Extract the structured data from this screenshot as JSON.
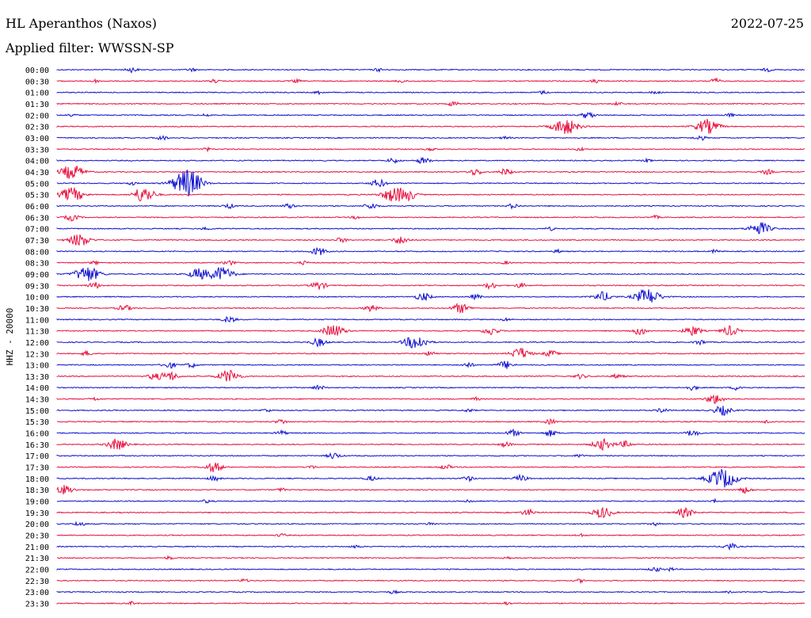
{
  "header": {
    "station": "HL Aperanthos (Naxos)",
    "date": "2022-07-25",
    "filter": "Applied filter: WWSSN-SP"
  },
  "chart_data": {
    "type": "line",
    "ylabel": "HHZ - 20000",
    "colors": {
      "odd": "#1010d0",
      "even": "#e8103f"
    },
    "traces": [
      {
        "label": "00:00",
        "events": [
          [
            10,
            3
          ],
          [
            18,
            2
          ],
          [
            43,
            2
          ],
          [
            95,
            2
          ]
        ]
      },
      {
        "label": "00:30",
        "events": [
          [
            5,
            2
          ],
          [
            21,
            2
          ],
          [
            32,
            2
          ],
          [
            46,
            2
          ],
          [
            72,
            2
          ],
          [
            88,
            3
          ]
        ]
      },
      {
        "label": "01:00",
        "events": [
          [
            35,
            2
          ],
          [
            65,
            2
          ],
          [
            80,
            2
          ]
        ]
      },
      {
        "label": "01:30",
        "events": [
          [
            53,
            3
          ],
          [
            75,
            2
          ]
        ]
      },
      {
        "label": "02:00",
        "events": [
          [
            2,
            2
          ],
          [
            20,
            2
          ],
          [
            71,
            4
          ],
          [
            90,
            2
          ]
        ]
      },
      {
        "label": "02:30",
        "events": [
          [
            68,
            10
          ],
          [
            87,
            9
          ]
        ]
      },
      {
        "label": "03:00",
        "events": [
          [
            14,
            3
          ],
          [
            60,
            2
          ],
          [
            86,
            3
          ]
        ]
      },
      {
        "label": "03:30",
        "events": [
          [
            20,
            2
          ],
          [
            50,
            2
          ],
          [
            70,
            2
          ]
        ]
      },
      {
        "label": "04:00",
        "events": [
          [
            45,
            3
          ],
          [
            49,
            4
          ],
          [
            79,
            2
          ]
        ]
      },
      {
        "label": "04:30",
        "events": [
          [
            2,
            9
          ],
          [
            56,
            4
          ],
          [
            60,
            4
          ],
          [
            95,
            3
          ]
        ]
      },
      {
        "label": "05:00",
        "events": [
          [
            17,
            11
          ],
          [
            18,
            9
          ],
          [
            43,
            5
          ],
          [
            10,
            2
          ]
        ]
      },
      {
        "label": "05:30",
        "events": [
          [
            2,
            9
          ],
          [
            11,
            5
          ],
          [
            12,
            7
          ],
          [
            45,
            9
          ],
          [
            47,
            6
          ]
        ]
      },
      {
        "label": "06:00",
        "events": [
          [
            23,
            3
          ],
          [
            31,
            3
          ],
          [
            42,
            4
          ],
          [
            61,
            3
          ]
        ]
      },
      {
        "label": "06:30",
        "events": [
          [
            2,
            4
          ],
          [
            40,
            2
          ],
          [
            80,
            2
          ]
        ]
      },
      {
        "label": "07:00",
        "events": [
          [
            20,
            2
          ],
          [
            66,
            2
          ],
          [
            94,
            8
          ]
        ]
      },
      {
        "label": "07:30",
        "events": [
          [
            3,
            8
          ],
          [
            38,
            3
          ],
          [
            46,
            5
          ]
        ]
      },
      {
        "label": "08:00",
        "events": [
          [
            35,
            5
          ],
          [
            67,
            2
          ],
          [
            88,
            2
          ]
        ]
      },
      {
        "label": "08:30",
        "events": [
          [
            5,
            2
          ],
          [
            23,
            3
          ],
          [
            33,
            2
          ],
          [
            60,
            2
          ]
        ]
      },
      {
        "label": "09:00",
        "events": [
          [
            4,
            10
          ],
          [
            19,
            7
          ],
          [
            22,
            9
          ]
        ]
      },
      {
        "label": "09:30",
        "events": [
          [
            5,
            4
          ],
          [
            35,
            5
          ],
          [
            58,
            4
          ],
          [
            62,
            3
          ]
        ]
      },
      {
        "label": "10:00",
        "events": [
          [
            49,
            5
          ],
          [
            56,
            3
          ],
          [
            73,
            6
          ],
          [
            79,
            10
          ]
        ]
      },
      {
        "label": "10:30",
        "events": [
          [
            9,
            4
          ],
          [
            42,
            4
          ],
          [
            54,
            6
          ]
        ]
      },
      {
        "label": "11:00",
        "events": [
          [
            23,
            4
          ],
          [
            60,
            2
          ]
        ]
      },
      {
        "label": "11:30",
        "events": [
          [
            37,
            8
          ],
          [
            58,
            5
          ],
          [
            78,
            5
          ],
          [
            85,
            6
          ],
          [
            90,
            6
          ]
        ]
      },
      {
        "label": "12:00",
        "events": [
          [
            35,
            5
          ],
          [
            48,
            9
          ],
          [
            86,
            3
          ]
        ]
      },
      {
        "label": "12:30",
        "events": [
          [
            4,
            3
          ],
          [
            50,
            3
          ],
          [
            62,
            7
          ],
          [
            66,
            4
          ]
        ]
      },
      {
        "label": "13:00",
        "events": [
          [
            15,
            4
          ],
          [
            18,
            3
          ],
          [
            55,
            3
          ],
          [
            60,
            5
          ]
        ]
      },
      {
        "label": "13:30",
        "events": [
          [
            13,
            4
          ],
          [
            15,
            6
          ],
          [
            23,
            8
          ],
          [
            70,
            3
          ],
          [
            75,
            3
          ]
        ]
      },
      {
        "label": "14:00",
        "events": [
          [
            35,
            3
          ],
          [
            85,
            3
          ],
          [
            91,
            3
          ]
        ]
      },
      {
        "label": "14:30",
        "events": [
          [
            5,
            2
          ],
          [
            56,
            2
          ],
          [
            88,
            6
          ]
        ]
      },
      {
        "label": "15:00",
        "events": [
          [
            28,
            2
          ],
          [
            55,
            2
          ],
          [
            81,
            3
          ],
          [
            89,
            6
          ]
        ]
      },
      {
        "label": "15:30",
        "events": [
          [
            30,
            3
          ],
          [
            66,
            3
          ],
          [
            95,
            2
          ]
        ]
      },
      {
        "label": "16:00",
        "events": [
          [
            30,
            3
          ],
          [
            61,
            4
          ],
          [
            66,
            4
          ],
          [
            85,
            4
          ]
        ]
      },
      {
        "label": "16:30",
        "events": [
          [
            8,
            7
          ],
          [
            60,
            3
          ],
          [
            73,
            7
          ],
          [
            76,
            4
          ]
        ]
      },
      {
        "label": "17:00",
        "events": [
          [
            37,
            4
          ],
          [
            70,
            2
          ]
        ]
      },
      {
        "label": "17:30",
        "events": [
          [
            21,
            6
          ],
          [
            34,
            2
          ],
          [
            52,
            3
          ]
        ]
      },
      {
        "label": "18:00",
        "events": [
          [
            21,
            3
          ],
          [
            42,
            3
          ],
          [
            55,
            3
          ],
          [
            62,
            4
          ],
          [
            89,
            12
          ]
        ]
      },
      {
        "label": "18:30",
        "events": [
          [
            1,
            6
          ],
          [
            30,
            2
          ],
          [
            92,
            4
          ]
        ]
      },
      {
        "label": "19:00",
        "events": [
          [
            20,
            2
          ],
          [
            55,
            2
          ],
          [
            88,
            2
          ]
        ]
      },
      {
        "label": "19:30",
        "events": [
          [
            63,
            4
          ],
          [
            73,
            7
          ],
          [
            84,
            6
          ]
        ]
      },
      {
        "label": "20:00",
        "events": [
          [
            3,
            3
          ],
          [
            50,
            2
          ],
          [
            80,
            2
          ]
        ]
      },
      {
        "label": "20:30",
        "events": [
          [
            30,
            2
          ],
          [
            70,
            2
          ]
        ]
      },
      {
        "label": "21:00",
        "events": [
          [
            40,
            2
          ],
          [
            90,
            4
          ]
        ]
      },
      {
        "label": "21:30",
        "events": [
          [
            15,
            2
          ],
          [
            60,
            2
          ]
        ]
      },
      {
        "label": "22:00",
        "events": [
          [
            80,
            3
          ],
          [
            82,
            2
          ]
        ]
      },
      {
        "label": "22:30",
        "events": [
          [
            25,
            2
          ],
          [
            70,
            2
          ]
        ]
      },
      {
        "label": "23:00",
        "events": [
          [
            45,
            2
          ],
          [
            90,
            2
          ]
        ]
      },
      {
        "label": "23:30",
        "events": [
          [
            10,
            2
          ],
          [
            60,
            2
          ]
        ]
      }
    ]
  }
}
